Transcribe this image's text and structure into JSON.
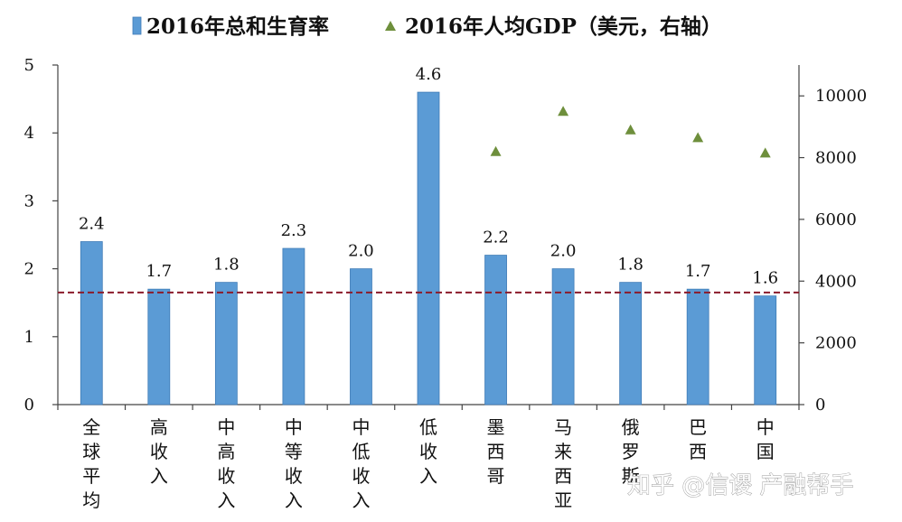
{
  "chart_data": {
    "type": "bar",
    "title": "",
    "categories": [
      "全球平均",
      "高收入",
      "中高收入",
      "中等收入",
      "中低收入",
      "低收入",
      "墨西哥",
      "马来西亚",
      "俄罗斯",
      "巴西",
      "中国"
    ],
    "series": [
      {
        "name": "2016年总和生育率",
        "type": "bar",
        "axis": "left",
        "values": [
          2.4,
          1.7,
          1.8,
          2.3,
          2.0,
          4.6,
          2.2,
          2.0,
          1.8,
          1.7,
          1.6
        ],
        "labels": [
          "2.4",
          "1.7",
          "1.8",
          "2.3",
          "2.0",
          "4.6",
          "2.2",
          "2.0",
          "1.8",
          "1.7",
          "1.6"
        ],
        "color": "#5b9bd5"
      },
      {
        "name": "2016年人均GDP（美元，右轴）",
        "type": "scatter",
        "axis": "right",
        "values": [
          null,
          null,
          null,
          null,
          null,
          null,
          8200,
          9500,
          8900,
          8650,
          8150
        ],
        "color": "#6e8f3c"
      }
    ],
    "reference_line": {
      "value": 1.65,
      "axis": "left",
      "style": "dashed",
      "color": "#8b1a2a"
    },
    "y_left": {
      "min": 0,
      "max": 5,
      "ticks": [
        "0",
        "1",
        "2",
        "3",
        "4",
        "5"
      ]
    },
    "y_right": {
      "min": 0,
      "max": 11000,
      "ticks": [
        "0",
        "2000",
        "4000",
        "6000",
        "8000",
        "10000"
      ]
    },
    "legend": "top",
    "grid": false
  },
  "watermark": {
    "text": "知乎 @信谡 产融帮手"
  }
}
